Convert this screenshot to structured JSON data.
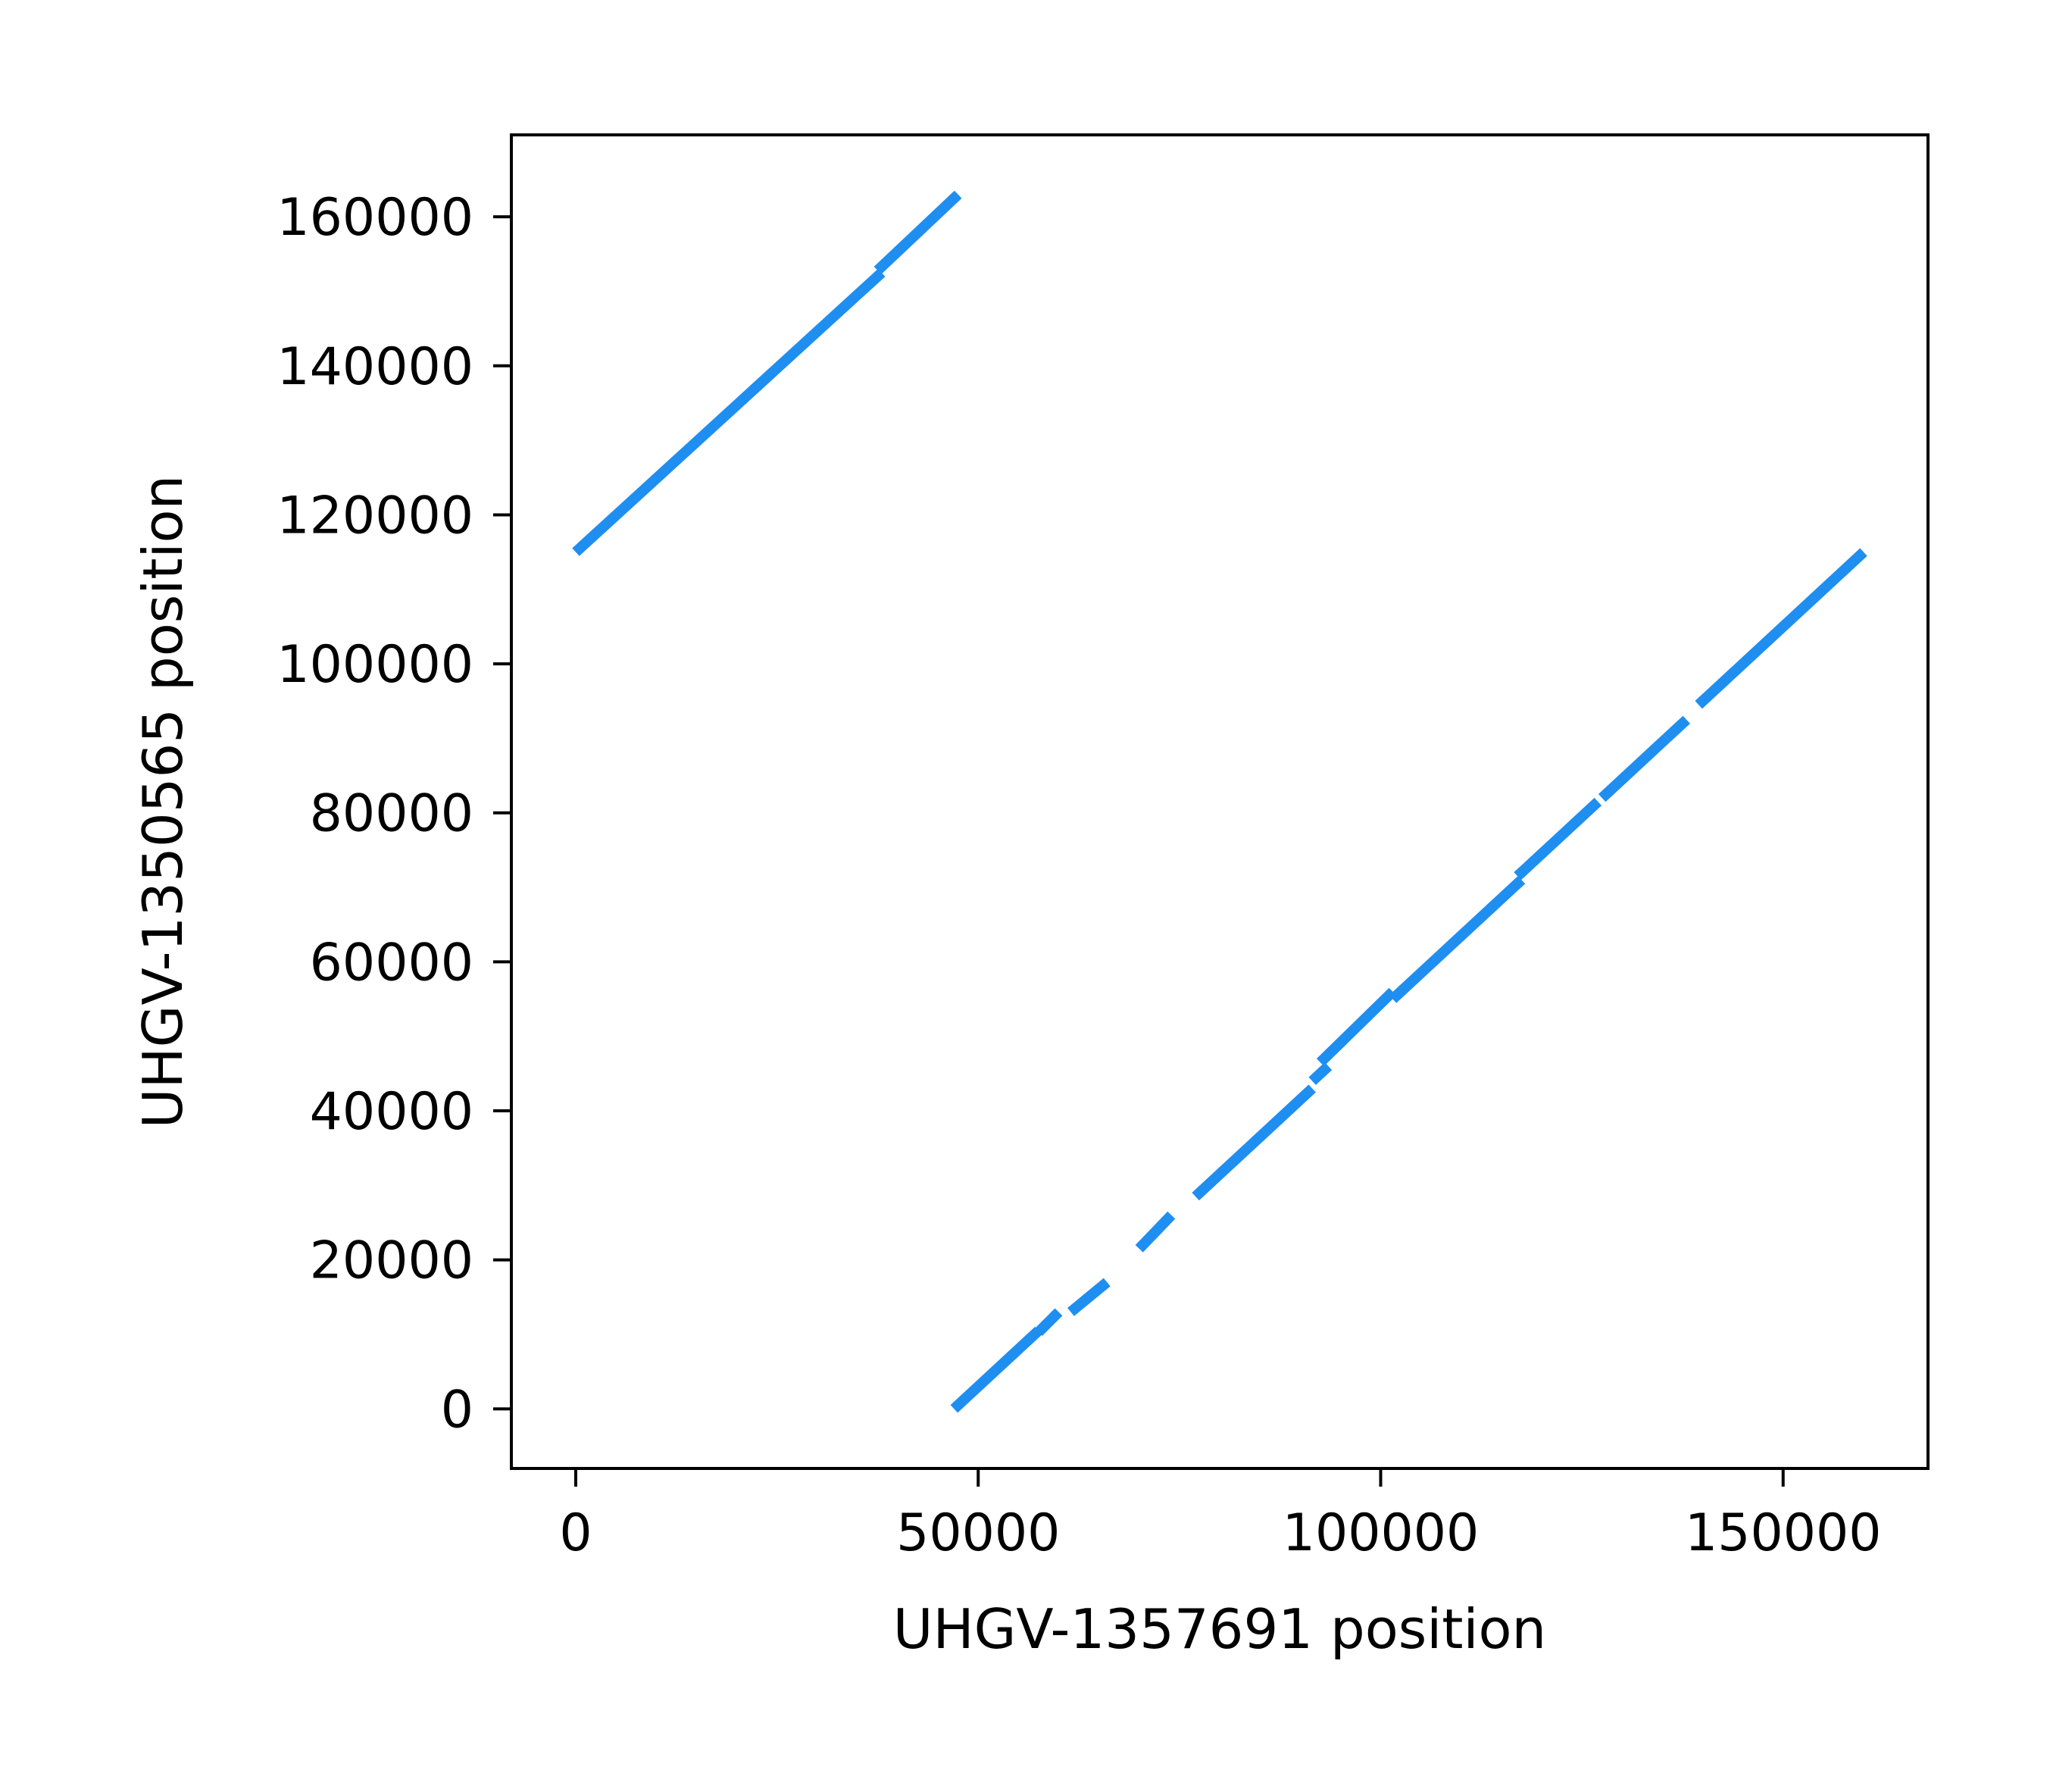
{
  "chart_data": {
    "type": "line",
    "title": "",
    "xlabel": "UHGV-1357691 position",
    "ylabel": "UHGV-1350565 position",
    "xlim": [
      -8000,
      168000
    ],
    "ylim": [
      -8000,
      171000
    ],
    "xticks": [
      0,
      50000,
      100000,
      150000
    ],
    "xtick_labels": [
      "0",
      "50000",
      "100000",
      "150000"
    ],
    "yticks": [
      0,
      20000,
      40000,
      60000,
      80000,
      100000,
      120000,
      140000,
      160000
    ],
    "ytick_labels": [
      "0",
      "20000",
      "40000",
      "60000",
      "80000",
      "100000",
      "120000",
      "140000",
      "160000"
    ],
    "grid": false,
    "legend": "none",
    "color": "#1f8ef1",
    "segments": [
      {
        "x": [
          0,
          38000
        ],
        "y": [
          115000,
          152500
        ]
      },
      {
        "x": [
          37500,
          47500
        ],
        "y": [
          152800,
          163000
        ]
      },
      {
        "x": [
          47000,
          57500
        ],
        "y": [
          0,
          10500
        ]
      },
      {
        "x": [
          57500,
          60000
        ],
        "y": [
          10300,
          13000
        ]
      },
      {
        "x": [
          61500,
          66000
        ],
        "y": [
          13000,
          17000
        ]
      },
      {
        "x": [
          70000,
          74000
        ],
        "y": [
          21500,
          26000
        ]
      },
      {
        "x": [
          77000,
          91500
        ],
        "y": [
          28500,
          43000
        ]
      },
      {
        "x": [
          91500,
          93500
        ],
        "y": [
          44000,
          46000
        ]
      },
      {
        "x": [
          92500,
          101500
        ],
        "y": [
          46500,
          56000
        ]
      },
      {
        "x": [
          101500,
          117500
        ],
        "y": [
          55000,
          71000
        ]
      },
      {
        "x": [
          117000,
          127000
        ],
        "y": [
          71500,
          81500
        ]
      },
      {
        "x": [
          127500,
          135500
        ],
        "y": [
          82000,
          90000
        ]
      },
      {
        "x": [
          135500,
          138000
        ],
        "y": [
          90000,
          92500
        ]
      },
      {
        "x": [
          139500,
          160000
        ],
        "y": [
          94500,
          115000
        ]
      }
    ]
  }
}
